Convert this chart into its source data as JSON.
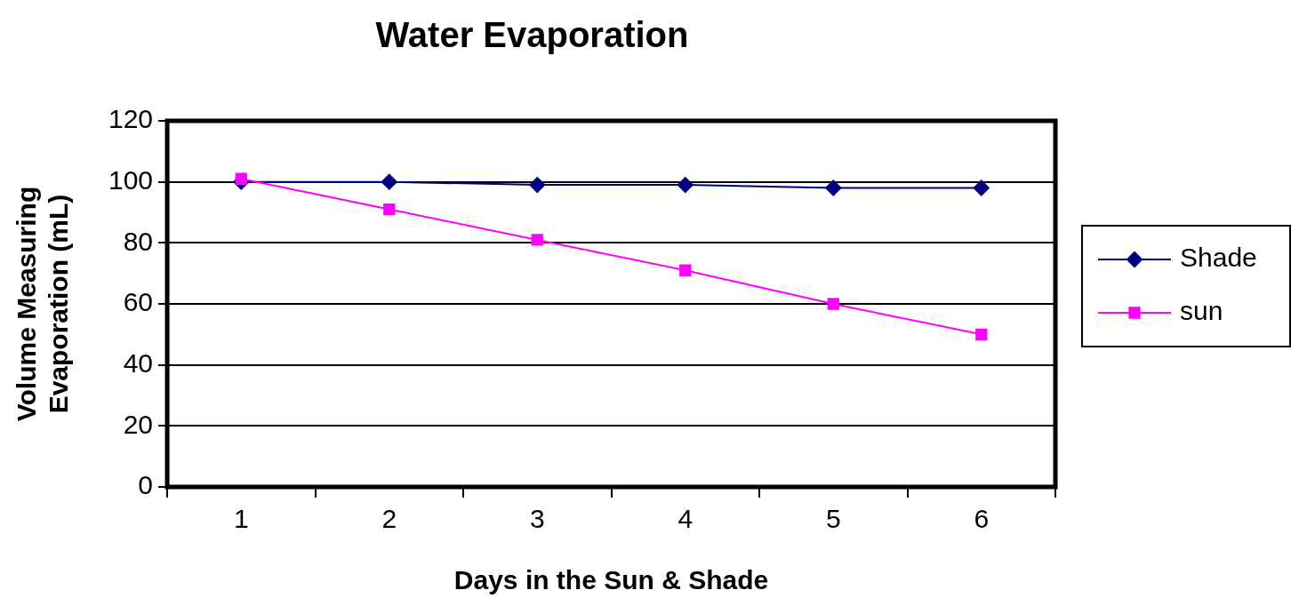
{
  "chart_data": {
    "type": "line",
    "title": "Water Evaporation",
    "xlabel": "Days in the Sun & Shade",
    "ylabel": "Volume Measuring Evaporation (mL)",
    "categories": [
      "1",
      "2",
      "3",
      "4",
      "5",
      "6"
    ],
    "series": [
      {
        "name": "Shade",
        "color": "#000080",
        "marker": "diamond",
        "values": [
          100,
          100,
          99,
          99,
          98,
          98
        ]
      },
      {
        "name": "sun",
        "color": "#ff00ff",
        "marker": "square",
        "values": [
          101,
          91,
          81,
          71,
          60,
          50
        ]
      }
    ],
    "ylim": [
      0,
      120
    ],
    "yticks": [
      0,
      20,
      40,
      60,
      80,
      100,
      120
    ],
    "grid": "y",
    "legend": "right"
  }
}
